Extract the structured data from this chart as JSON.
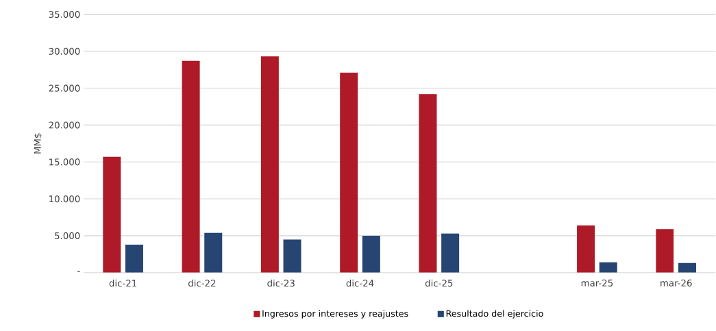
{
  "chart_data": {
    "type": "bar",
    "ylabel": "MM$",
    "categories": [
      "dic-21",
      "dic-22",
      "dic-23",
      "dic-24",
      "dic-25",
      null,
      "mar-25",
      "mar-26"
    ],
    "series": [
      {
        "name": "Ingresos por intereses y reajustes",
        "color": "#ae1a27",
        "values": [
          15700,
          28700,
          29300,
          27100,
          24200,
          null,
          6400,
          5900
        ]
      },
      {
        "name": "Resultado del ejercicio",
        "color": "#264573",
        "values": [
          3800,
          5400,
          4500,
          5000,
          5300,
          null,
          1400,
          1300
        ]
      }
    ],
    "ylim": [
      0,
      35000
    ],
    "yticks": [
      {
        "value": 0,
        "label": "-"
      },
      {
        "value": 5000,
        "label": "5.000"
      },
      {
        "value": 10000,
        "label": "10.000"
      },
      {
        "value": 15000,
        "label": "15.000"
      },
      {
        "value": 20000,
        "label": "20.000"
      },
      {
        "value": 25000,
        "label": "25.000"
      },
      {
        "value": 30000,
        "label": "30.000"
      },
      {
        "value": 35000,
        "label": "35.000"
      }
    ],
    "grid": "y",
    "legend": "bottom"
  }
}
